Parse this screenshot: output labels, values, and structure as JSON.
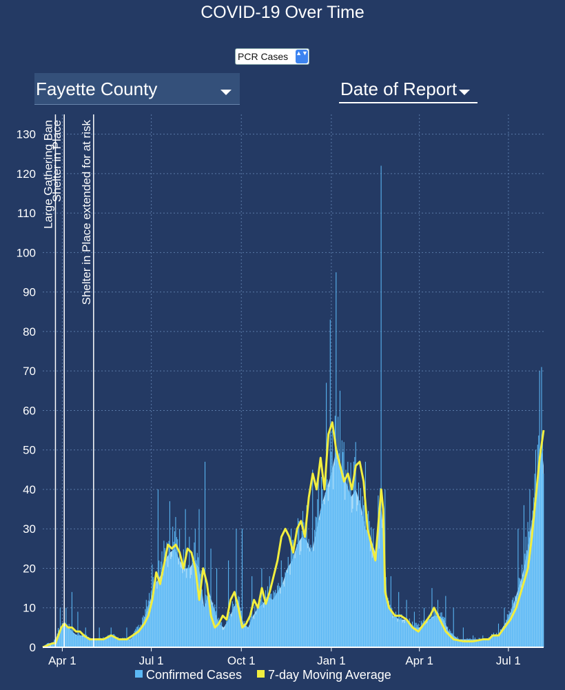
{
  "header": {
    "title": "COVID-19 Over Time"
  },
  "controls": {
    "measure_value": "PCR Cases",
    "stepper_glyph": "▲▼",
    "county_value": "Fayette County",
    "date_value": "Date of Report"
  },
  "chart_data": {
    "type": "bar",
    "title": "COVID-19 Over Time",
    "xlabel": "",
    "ylabel": "",
    "ylim": [
      0,
      135
    ],
    "xdomain_days": [
      0,
      512
    ],
    "x_ticks": [
      {
        "day": 20,
        "label": "Apr 1"
      },
      {
        "day": 111,
        "label": "Jul 1"
      },
      {
        "day": 203,
        "label": "Oct 1"
      },
      {
        "day": 295,
        "label": "Jan 1"
      },
      {
        "day": 385,
        "label": "Apr 1"
      },
      {
        "day": 476,
        "label": "Jul 1"
      }
    ],
    "y_ticks": [
      0,
      10,
      20,
      30,
      40,
      50,
      60,
      70,
      80,
      90,
      100,
      110,
      120,
      130
    ],
    "annotations": [
      {
        "day": 13,
        "label": "Large Gathering Ban"
      },
      {
        "day": 22,
        "label": "Shelter in Place"
      },
      {
        "day": 52,
        "label": "Shelter in Place extended for at risk"
      }
    ],
    "legend": [
      "Confirmed Cases",
      "7-day Moving Average"
    ],
    "series": [
      {
        "name": "Confirmed Cases",
        "color": "#5bb8f5",
        "area_color": "#a9dbf7",
        "type": "bar",
        "points": [
          [
            0,
            0
          ],
          [
            5,
            1
          ],
          [
            10,
            1
          ],
          [
            13,
            2
          ],
          [
            16,
            4
          ],
          [
            19,
            5
          ],
          [
            22,
            6
          ],
          [
            26,
            5
          ],
          [
            30,
            4
          ],
          [
            35,
            3
          ],
          [
            42,
            3
          ],
          [
            52,
            2
          ],
          [
            60,
            2
          ],
          [
            70,
            3
          ],
          [
            80,
            2
          ],
          [
            90,
            2
          ],
          [
            95,
            4
          ],
          [
            100,
            5
          ],
          [
            105,
            8
          ],
          [
            110,
            12
          ],
          [
            115,
            16
          ],
          [
            120,
            18
          ],
          [
            125,
            22
          ],
          [
            130,
            24
          ],
          [
            135,
            25
          ],
          [
            140,
            22
          ],
          [
            145,
            20
          ],
          [
            150,
            20
          ],
          [
            155,
            22
          ],
          [
            160,
            20
          ],
          [
            165,
            10
          ],
          [
            170,
            14
          ],
          [
            175,
            10
          ],
          [
            180,
            6
          ],
          [
            185,
            5
          ],
          [
            190,
            7
          ],
          [
            195,
            10
          ],
          [
            200,
            12
          ],
          [
            205,
            6
          ],
          [
            210,
            5
          ],
          [
            215,
            8
          ],
          [
            220,
            10
          ],
          [
            225,
            11
          ],
          [
            230,
            13
          ],
          [
            235,
            12
          ],
          [
            240,
            14
          ],
          [
            245,
            16
          ],
          [
            250,
            20
          ],
          [
            255,
            22
          ],
          [
            260,
            26
          ],
          [
            265,
            28
          ],
          [
            270,
            27
          ],
          [
            275,
            24
          ],
          [
            280,
            30
          ],
          [
            285,
            36
          ],
          [
            290,
            40
          ],
          [
            295,
            44
          ],
          [
            300,
            50
          ],
          [
            305,
            46
          ],
          [
            310,
            42
          ],
          [
            315,
            38
          ],
          [
            320,
            40
          ],
          [
            325,
            36
          ],
          [
            330,
            30
          ],
          [
            335,
            28
          ],
          [
            340,
            24
          ],
          [
            345,
            38
          ],
          [
            348,
            30
          ],
          [
            352,
            12
          ],
          [
            358,
            8
          ],
          [
            365,
            7
          ],
          [
            370,
            7
          ],
          [
            375,
            6
          ],
          [
            380,
            5
          ],
          [
            385,
            5
          ],
          [
            390,
            6
          ],
          [
            395,
            7
          ],
          [
            400,
            8
          ],
          [
            405,
            8
          ],
          [
            410,
            7
          ],
          [
            415,
            4
          ],
          [
            420,
            3
          ],
          [
            425,
            2
          ],
          [
            430,
            2
          ],
          [
            435,
            2
          ],
          [
            440,
            2
          ],
          [
            445,
            2
          ],
          [
            450,
            2
          ],
          [
            455,
            2
          ],
          [
            460,
            3
          ],
          [
            465,
            3
          ],
          [
            470,
            5
          ],
          [
            475,
            7
          ],
          [
            480,
            10
          ],
          [
            485,
            14
          ],
          [
            490,
            18
          ],
          [
            495,
            24
          ],
          [
            500,
            32
          ],
          [
            505,
            42
          ],
          [
            510,
            50
          ],
          [
            512,
            46
          ]
        ],
        "spikes": [
          [
            8,
            0
          ],
          [
            18,
            10
          ],
          [
            24,
            10
          ],
          [
            30,
            14
          ],
          [
            36,
            9
          ],
          [
            44,
            5
          ],
          [
            58,
            5
          ],
          [
            70,
            5
          ],
          [
            86,
            5
          ],
          [
            106,
            12
          ],
          [
            112,
            21
          ],
          [
            118,
            40
          ],
          [
            124,
            27
          ],
          [
            130,
            37
          ],
          [
            136,
            33
          ],
          [
            140,
            30
          ],
          [
            146,
            35
          ],
          [
            150,
            28
          ],
          [
            156,
            30
          ],
          [
            160,
            35
          ],
          [
            166,
            47
          ],
          [
            172,
            25
          ],
          [
            178,
            20
          ],
          [
            190,
            22
          ],
          [
            198,
            30
          ],
          [
            204,
            30
          ],
          [
            214,
            18
          ],
          [
            224,
            20
          ],
          [
            232,
            18
          ],
          [
            244,
            22
          ],
          [
            254,
            30
          ],
          [
            262,
            32
          ],
          [
            270,
            36
          ],
          [
            276,
            45
          ],
          [
            282,
            45
          ],
          [
            286,
            40
          ],
          [
            290,
            67
          ],
          [
            294,
            83
          ],
          [
            296,
            55
          ],
          [
            300,
            95
          ],
          [
            304,
            65
          ],
          [
            308,
            52
          ],
          [
            312,
            47
          ],
          [
            320,
            52
          ],
          [
            330,
            47
          ],
          [
            338,
            30
          ],
          [
            344,
            25
          ],
          [
            346,
            122
          ],
          [
            350,
            40
          ],
          [
            356,
            18
          ],
          [
            364,
            14
          ],
          [
            372,
            12
          ],
          [
            380,
            9
          ],
          [
            390,
            10
          ],
          [
            398,
            15
          ],
          [
            404,
            12
          ],
          [
            412,
            13
          ],
          [
            420,
            10
          ],
          [
            430,
            5
          ],
          [
            440,
            3
          ],
          [
            450,
            3
          ],
          [
            460,
            3
          ],
          [
            466,
            6
          ],
          [
            472,
            10
          ],
          [
            480,
            12
          ],
          [
            486,
            30
          ],
          [
            492,
            36
          ],
          [
            498,
            40
          ],
          [
            504,
            50
          ],
          [
            508,
            70
          ],
          [
            510,
            71
          ],
          [
            512,
            44
          ]
        ]
      },
      {
        "name": "7-day Moving Average",
        "color": "#f2ee3e",
        "type": "line",
        "points": [
          [
            0,
            0
          ],
          [
            5,
            0.5
          ],
          [
            10,
            1
          ],
          [
            13,
            1
          ],
          [
            16,
            3
          ],
          [
            19,
            5
          ],
          [
            22,
            6
          ],
          [
            26,
            5
          ],
          [
            30,
            5
          ],
          [
            34,
            4
          ],
          [
            38,
            4
          ],
          [
            42,
            3
          ],
          [
            48,
            2
          ],
          [
            55,
            2
          ],
          [
            62,
            2
          ],
          [
            70,
            3
          ],
          [
            78,
            2
          ],
          [
            86,
            2
          ],
          [
            92,
            3
          ],
          [
            98,
            4
          ],
          [
            104,
            6
          ],
          [
            108,
            8
          ],
          [
            112,
            12
          ],
          [
            116,
            19
          ],
          [
            120,
            16
          ],
          [
            124,
            21
          ],
          [
            128,
            26
          ],
          [
            132,
            25
          ],
          [
            136,
            26
          ],
          [
            140,
            24
          ],
          [
            144,
            20
          ],
          [
            148,
            25
          ],
          [
            152,
            24
          ],
          [
            156,
            20
          ],
          [
            160,
            12
          ],
          [
            164,
            20
          ],
          [
            168,
            16
          ],
          [
            172,
            8
          ],
          [
            176,
            5
          ],
          [
            180,
            6
          ],
          [
            184,
            8
          ],
          [
            188,
            7
          ],
          [
            192,
            12
          ],
          [
            196,
            14
          ],
          [
            200,
            10
          ],
          [
            204,
            5
          ],
          [
            208,
            6
          ],
          [
            212,
            8
          ],
          [
            216,
            12
          ],
          [
            220,
            10
          ],
          [
            224,
            15
          ],
          [
            228,
            11
          ],
          [
            232,
            14
          ],
          [
            236,
            18
          ],
          [
            240,
            22
          ],
          [
            244,
            28
          ],
          [
            248,
            30
          ],
          [
            252,
            28
          ],
          [
            256,
            24
          ],
          [
            260,
            30
          ],
          [
            264,
            32
          ],
          [
            268,
            28
          ],
          [
            272,
            38
          ],
          [
            276,
            44
          ],
          [
            280,
            40
          ],
          [
            284,
            48
          ],
          [
            288,
            40
          ],
          [
            292,
            54
          ],
          [
            296,
            57
          ],
          [
            300,
            50
          ],
          [
            304,
            46
          ],
          [
            308,
            42
          ],
          [
            312,
            44
          ],
          [
            316,
            40
          ],
          [
            320,
            46
          ],
          [
            324,
            47
          ],
          [
            328,
            42
          ],
          [
            332,
            30
          ],
          [
            336,
            26
          ],
          [
            340,
            22
          ],
          [
            344,
            34
          ],
          [
            346,
            40
          ],
          [
            348,
            35
          ],
          [
            350,
            14
          ],
          [
            354,
            10
          ],
          [
            360,
            8
          ],
          [
            366,
            8
          ],
          [
            372,
            7
          ],
          [
            378,
            5
          ],
          [
            384,
            4
          ],
          [
            390,
            6
          ],
          [
            396,
            8
          ],
          [
            400,
            10
          ],
          [
            404,
            8
          ],
          [
            408,
            6
          ],
          [
            412,
            4
          ],
          [
            416,
            3
          ],
          [
            420,
            2
          ],
          [
            430,
            1.5
          ],
          [
            440,
            1.5
          ],
          [
            450,
            2
          ],
          [
            456,
            2
          ],
          [
            460,
            3
          ],
          [
            466,
            3
          ],
          [
            472,
            5
          ],
          [
            478,
            7
          ],
          [
            484,
            10
          ],
          [
            490,
            15
          ],
          [
            496,
            20
          ],
          [
            500,
            28
          ],
          [
            504,
            38
          ],
          [
            508,
            48
          ],
          [
            512,
            55
          ]
        ]
      }
    ]
  },
  "colors": {
    "background": "#243a64",
    "bars": "#5bb8f5",
    "area": "#a9dbf7",
    "average": "#f2ee3e",
    "grid": "#5a7aa8"
  }
}
